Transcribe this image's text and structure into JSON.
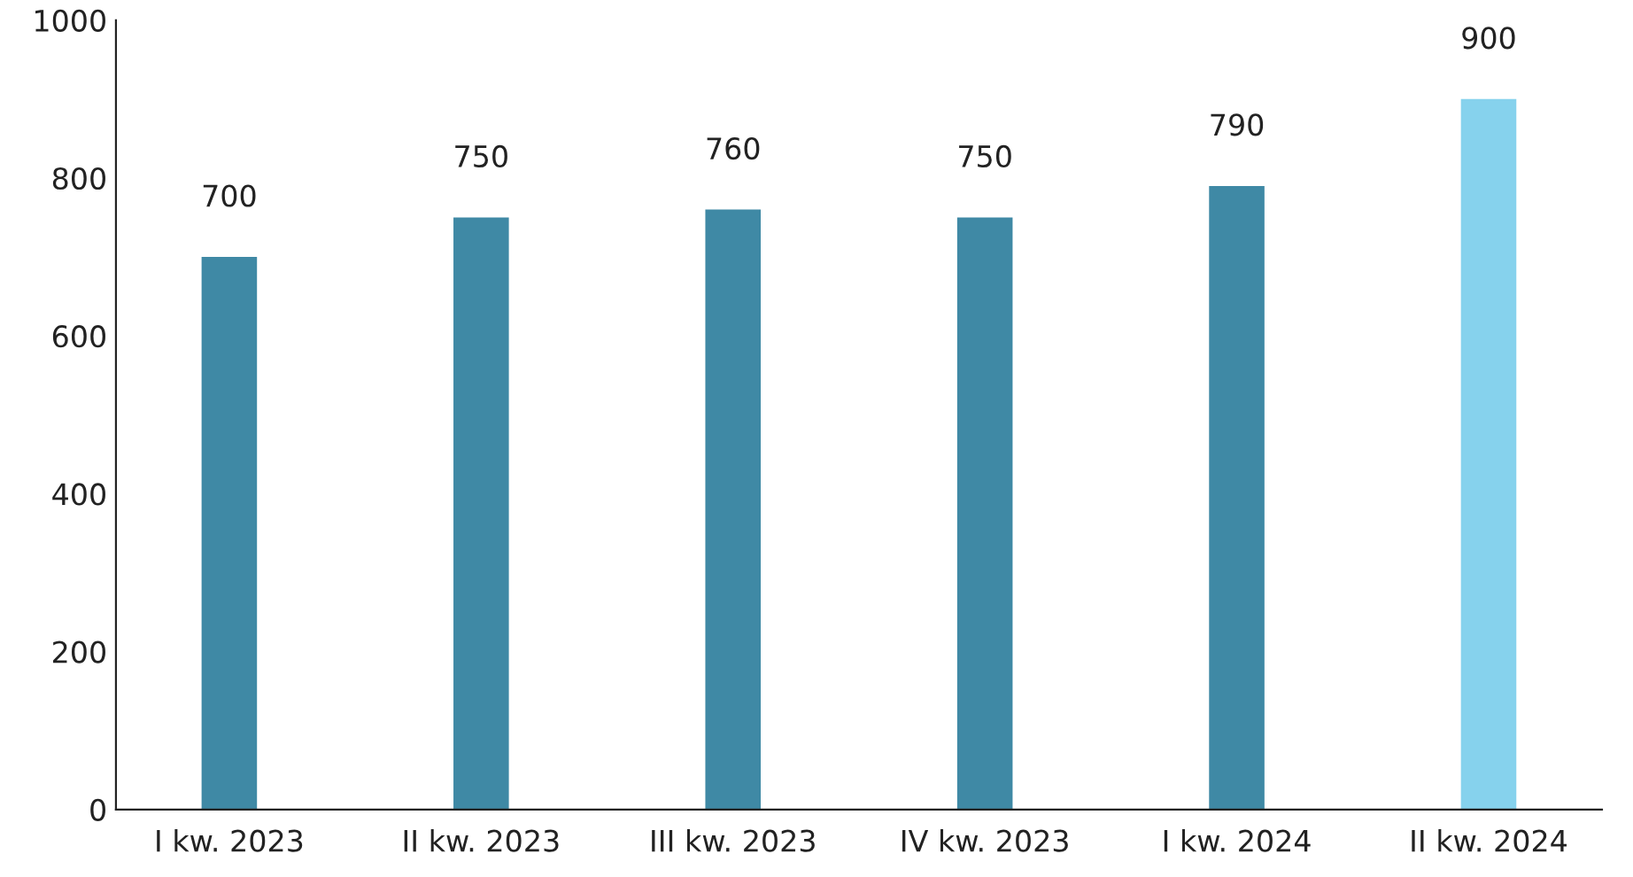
{
  "chart_data": {
    "type": "bar",
    "categories": [
      "I kw. 2023",
      "II kw. 2023",
      "III kw. 2023",
      "IV kw. 2023",
      "I kw. 2024",
      "II kw. 2024"
    ],
    "values": [
      700,
      750,
      760,
      750,
      790,
      900
    ],
    "colors": [
      "#3f89a5",
      "#3f89a5",
      "#3f89a5",
      "#3f89a5",
      "#3f89a5",
      "#86d2ed"
    ],
    "ylim": [
      0,
      1000
    ],
    "yticks": [
      0,
      200,
      400,
      600,
      800,
      1000
    ],
    "data_labels": true,
    "grid": false,
    "legend": false
  }
}
